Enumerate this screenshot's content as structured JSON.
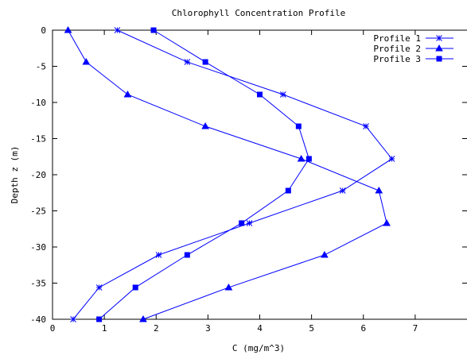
{
  "chart_data": {
    "type": "line",
    "title": "Chlorophyll Concentration Profile",
    "xlabel": "C (mg/m^3)",
    "ylabel": "Depth z (m)",
    "xlim": [
      0,
      8
    ],
    "ylim": [
      -40,
      0
    ],
    "xticks": [
      0,
      1,
      2,
      3,
      4,
      5,
      6,
      7
    ],
    "yticks": [
      0,
      -5,
      -10,
      -15,
      -20,
      -25,
      -30,
      -35,
      -40
    ],
    "grid": false,
    "legend_position": "top-right",
    "color": "#0000ff",
    "series": [
      {
        "name": "Profile 1",
        "marker": "star",
        "x": [
          1.25,
          2.6,
          4.45,
          6.05,
          6.55,
          5.6,
          3.8,
          2.05,
          0.9,
          0.4
        ],
        "y": [
          0,
          -4.4,
          -8.9,
          -13.3,
          -17.8,
          -22.2,
          -26.7,
          -31.1,
          -35.6,
          -40
        ]
      },
      {
        "name": "Profile 2",
        "marker": "triangle",
        "x": [
          0.3,
          0.65,
          1.45,
          2.95,
          4.8,
          6.3,
          6.45,
          5.25,
          3.4,
          1.75
        ],
        "y": [
          0,
          -4.4,
          -8.9,
          -13.3,
          -17.8,
          -22.2,
          -26.7,
          -31.1,
          -35.6,
          -40
        ]
      },
      {
        "name": "Profile 3",
        "marker": "square",
        "x": [
          1.95,
          2.95,
          4.0,
          4.75,
          4.95,
          4.55,
          3.65,
          2.6,
          1.6,
          0.9
        ],
        "y": [
          0,
          -4.4,
          -8.9,
          -13.3,
          -17.8,
          -22.2,
          -26.7,
          -31.1,
          -35.6,
          -40
        ]
      }
    ]
  }
}
